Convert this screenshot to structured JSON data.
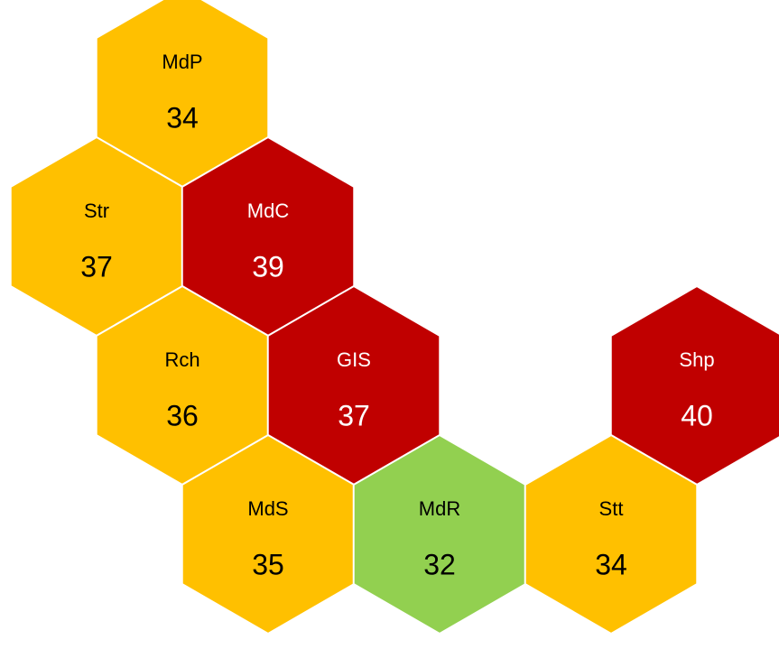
{
  "nodes": [
    {
      "label": "MdP",
      "value": "34",
      "color": "#FFC000",
      "text_color": "#000000"
    },
    {
      "label": "Str",
      "value": "37",
      "color": "#FFC000",
      "text_color": "#000000"
    },
    {
      "label": "MdC",
      "value": "39",
      "color": "#C00000",
      "text_color": "#FFFFFF"
    },
    {
      "label": "Rch",
      "value": "36",
      "color": "#FFC000",
      "text_color": "#000000"
    },
    {
      "label": "GIS",
      "value": "37",
      "color": "#C00000",
      "text_color": "#FFFFFF"
    },
    {
      "label": "Shp",
      "value": "40",
      "color": "#C00000",
      "text_color": "#FFFFFF"
    },
    {
      "label": "MdS",
      "value": "35",
      "color": "#FFC000",
      "text_color": "#000000"
    },
    {
      "label": "MdR",
      "value": "32",
      "color": "#92D050",
      "text_color": "#000000"
    },
    {
      "label": "Stt",
      "value": "34",
      "color": "#FFC000",
      "text_color": "#000000"
    }
  ]
}
